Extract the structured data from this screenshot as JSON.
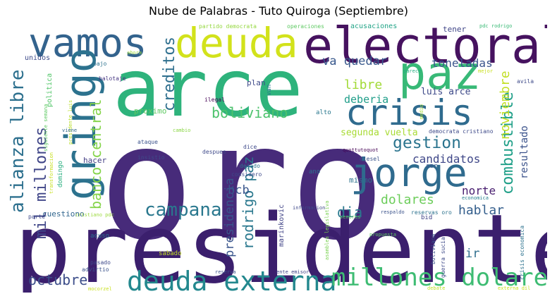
{
  "title": "Nube de Palabras - Tuto Quiroga (Septiembre)",
  "words": [
    {
      "text": "oro",
      "color": "#472b7a"
    },
    {
      "text": "presidente",
      "color": "#3b1f6d"
    },
    {
      "text": "arce",
      "color": "#2eb37c"
    },
    {
      "text": "electoral",
      "color": "#46125f"
    },
    {
      "text": "deuda",
      "color": "#d2e21b"
    },
    {
      "text": "vamos",
      "color": "#33638d"
    },
    {
      "text": "paz",
      "color": "#38b977"
    },
    {
      "text": "crisis",
      "color": "#2f6b8e"
    },
    {
      "text": "jorge",
      "color": "#2f6b8e"
    },
    {
      "text": "gringo",
      "color": "#2c728e"
    },
    {
      "text": "deuda externa",
      "color": "#23888e"
    },
    {
      "text": "millones dolares",
      "color": "#3ebc73"
    },
    {
      "text": "campana",
      "color": "#2a788e"
    },
    {
      "text": "alianza libre",
      "color": "#2d708e"
    },
    {
      "text": "mil millones",
      "color": "#404688"
    },
    {
      "text": "banco central",
      "color": "#85d44a"
    },
    {
      "text": "creditos",
      "color": "#2e6f8e"
    },
    {
      "text": "boliviano",
      "color": "#4cc26c"
    },
    {
      "text": "presidencia",
      "color": "#39558c"
    },
    {
      "text": "rodrigo paz",
      "color": "#2a788e"
    },
    {
      "text": "gestion",
      "color": "#2b748e"
    },
    {
      "text": "combustible",
      "color": "#1f9f88"
    },
    {
      "text": "noviembre",
      "color": "#c2df23"
    },
    {
      "text": "libre",
      "color": "#a2da37"
    },
    {
      "text": "va quedar",
      "color": "#38588c"
    },
    {
      "text": "toneladas",
      "color": "#3a548c"
    },
    {
      "text": "deberia",
      "color": "#1f9e89"
    },
    {
      "text": "dia",
      "color": "#2a788e"
    },
    {
      "text": "hablar",
      "color": "#355f8d"
    },
    {
      "text": "dolares",
      "color": "#6ccd5a"
    },
    {
      "text": "octubre",
      "color": "#3d4e8a"
    },
    {
      "text": "candidatos",
      "color": "#3f4788"
    },
    {
      "text": "resultado",
      "color": "#3b528b"
    },
    {
      "text": "norte",
      "color": "#481d6f"
    },
    {
      "text": "segunda vuelta",
      "color": "#a8db34"
    },
    {
      "text": "luis arce",
      "color": "#3e4a89"
    },
    {
      "text": "bcb",
      "color": "#39568c"
    },
    {
      "text": "ir",
      "color": "#2e6e8e"
    },
    {
      "text": "mismo",
      "color": "#2c728e"
    },
    {
      "text": "proximo",
      "color": "#5ec962"
    },
    {
      "text": "plan",
      "color": "#3e4a89"
    },
    {
      "text": "van",
      "color": "#2a788e"
    },
    {
      "text": "cuestiono",
      "color": "#31668e"
    },
    {
      "text": "hacer",
      "color": "#433e85"
    },
    {
      "text": "marinkovic",
      "color": "#414487"
    },
    {
      "text": "tener",
      "color": "#404688"
    },
    {
      "text": "partido democrata",
      "color": "#95d840"
    },
    {
      "text": "operaciones",
      "color": "#5ec962"
    },
    {
      "text": "acusaciones",
      "color": "#20a386"
    },
    {
      "text": "pdc rodrigo",
      "color": "#3aba76"
    },
    {
      "text": "unidos",
      "color": "#3e4c8a"
    },
    {
      "text": "bajo",
      "color": "#2c728e"
    },
    {
      "text": "balotaje",
      "color": "#453581"
    },
    {
      "text": "ahora",
      "color": "#9bd93c"
    },
    {
      "text": "politica",
      "color": "#52c569"
    },
    {
      "text": "siguiente semana",
      "color": "#5ec962"
    },
    {
      "text": "presidente luis",
      "color": "#b8de29"
    },
    {
      "text": "viene",
      "color": "#31668e"
    },
    {
      "text": "domingo",
      "color": "#29af7f"
    },
    {
      "text": "transformacion",
      "color": "#c8e020"
    },
    {
      "text": "ataque",
      "color": "#3b528b"
    },
    {
      "text": "insistio",
      "color": "#3e4a89"
    },
    {
      "text": "cambio",
      "color": "#8bd646"
    },
    {
      "text": "despues",
      "color": "#3e4989"
    },
    {
      "text": "dice",
      "color": "#3e4989"
    },
    {
      "text": "dejado",
      "color": "#2c728e"
    },
    {
      "text": "considero",
      "color": "#3e4989"
    },
    {
      "text": "ilegal",
      "color": "#440154"
    },
    {
      "text": "alto",
      "color": "#2a788e"
    },
    {
      "text": "medio",
      "color": "#a5db36"
    },
    {
      "text": "quottutoquot",
      "color": "#440154"
    },
    {
      "text": "diesel",
      "color": "#3a538b"
    },
    {
      "text": "ser",
      "color": "#3b528b"
    },
    {
      "text": "ano",
      "color": "#2c728e"
    },
    {
      "text": "democrata cristiano",
      "color": "#3e4a89"
    },
    {
      "text": "parece",
      "color": "#26ad81"
    },
    {
      "text": "mejor",
      "color": "#c8e020"
    },
    {
      "text": "avila",
      "color": "#3e4a89"
    },
    {
      "text": "senores",
      "color": "#5ec962"
    },
    {
      "text": "respaldo",
      "color": "#3b528b"
    },
    {
      "text": "economica",
      "color": "#277f8e"
    },
    {
      "text": "reservas oro",
      "color": "#2c728e"
    },
    {
      "text": "bid",
      "color": "#414487"
    },
    {
      "text": "informacion",
      "color": "#3e4989"
    },
    {
      "text": "asamblea legislativa",
      "color": "#7ad151"
    },
    {
      "text": "crisis economica",
      "color": "#2c728e"
    },
    {
      "text": "boliviana",
      "color": "#3b528b"
    },
    {
      "text": "guerra sucia",
      "color": "#3e4a89"
    },
    {
      "text": "propuesta",
      "color": "#5ec962"
    },
    {
      "text": "cristiano pdc",
      "color": "#9bd93c"
    },
    {
      "text": "parte",
      "color": "#3e4989"
    },
    {
      "text": "acuso",
      "color": "#2c728e"
    },
    {
      "text": "sabado",
      "color": "#c2df23"
    },
    {
      "text": "pasado",
      "color": "#3e4989"
    },
    {
      "text": "advirtio",
      "color": "#3b528b"
    },
    {
      "text": "reserva",
      "color": "#3b528b"
    },
    {
      "text": "ente emisor",
      "color": "#414487"
    },
    {
      "text": "debate",
      "color": "#bddf26"
    },
    {
      "text": "externa dil",
      "color": "#c8e020"
    },
    {
      "text": "mocorzel",
      "color": "#c8e020"
    }
  ]
}
